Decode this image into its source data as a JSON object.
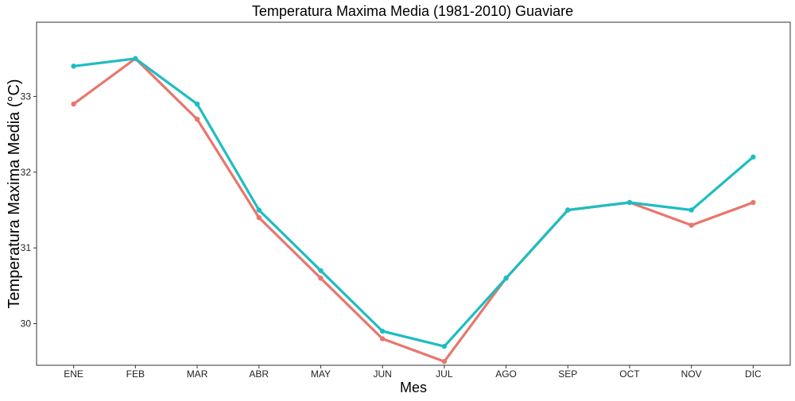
{
  "chart_data": {
    "type": "line",
    "title": "Temperatura Maxima Media (1981-2010)  Guaviare",
    "xlabel": "Mes",
    "ylabel": "Temperatura Maxima Media  (°C)",
    "categories": [
      "ENE",
      "FEB",
      "MAR",
      "ABR",
      "MAY",
      "JUN",
      "JUL",
      "AGO",
      "SEP",
      "OCT",
      "NOV",
      "DIC"
    ],
    "ylim": [
      29.45,
      33.98
    ],
    "yticks": [
      30,
      31,
      32,
      33
    ],
    "grid": false,
    "legend": "none",
    "series": [
      {
        "color": "#E8766D",
        "values": [
          32.9,
          33.5,
          32.7,
          31.4,
          30.6,
          29.8,
          29.5,
          30.6,
          31.5,
          31.6,
          31.3,
          31.6
        ]
      },
      {
        "color": "#1DBDC2",
        "values": [
          33.4,
          33.5,
          32.9,
          31.5,
          30.7,
          29.9,
          29.7,
          30.6,
          31.5,
          31.6,
          31.5,
          32.2
        ]
      }
    ]
  }
}
